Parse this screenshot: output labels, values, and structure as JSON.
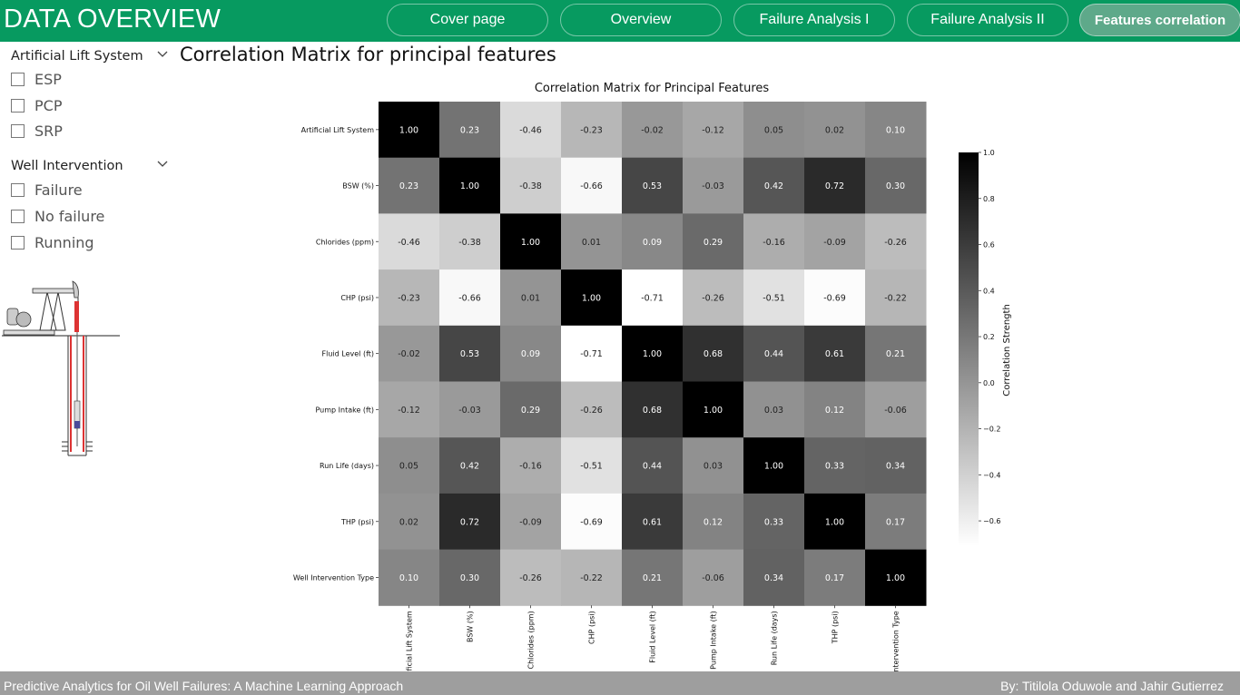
{
  "header": {
    "title": "DATA OVERVIEW",
    "tabs": [
      {
        "label": "Cover page",
        "active": false
      },
      {
        "label": "Overview",
        "active": false
      },
      {
        "label": "Failure Analysis I",
        "active": false
      },
      {
        "label": "Failure Analysis II",
        "active": false
      },
      {
        "label": "Features correlation",
        "active": true
      }
    ],
    "color": "#079a60"
  },
  "filters": {
    "artificial_lift": {
      "title": "Artificial Lift System",
      "options": [
        "ESP",
        "PCP",
        "SRP"
      ]
    },
    "well_intervention": {
      "title": "Well Intervention",
      "options": [
        "Failure",
        "No failure",
        "Running"
      ]
    }
  },
  "page_heading": "Correlation Matrix for principal features",
  "footer": {
    "left": "Predictive Analytics for Oil Well Failures: A Machine Learning Approach",
    "right": "By: Titilola Oduwole and Jahir Gutierrez"
  },
  "chart_data": {
    "type": "heatmap",
    "title": "Correlation Matrix for Principal Features",
    "row_labels": [
      "Artificial Lift System",
      "BSW (%)",
      "Chlorides (ppm)",
      "CHP (psi)",
      "Fluid Level (ft)",
      "Pump Intake (ft)",
      "Run Life (days)",
      "THP (psi)",
      "Well Intervention Type"
    ],
    "col_labels": [
      "ificial Lift System",
      "BSW (%)",
      "Chlorides (ppm)",
      "CHP (psi)",
      "Fluid Level (ft)",
      "Pump Intake (ft)",
      "Run Life (days)",
      "THP (psi)",
      "ntervention Type"
    ],
    "values": [
      [
        1.0,
        0.23,
        -0.46,
        -0.23,
        -0.02,
        -0.12,
        0.05,
        0.02,
        0.1
      ],
      [
        0.23,
        1.0,
        -0.38,
        -0.66,
        0.53,
        -0.03,
        0.42,
        0.72,
        0.3
      ],
      [
        -0.46,
        -0.38,
        1.0,
        0.01,
        0.09,
        0.29,
        -0.16,
        -0.09,
        -0.26
      ],
      [
        -0.23,
        -0.66,
        0.01,
        1.0,
        -0.71,
        -0.26,
        -0.51,
        -0.69,
        -0.22
      ],
      [
        -0.02,
        0.53,
        0.09,
        -0.71,
        1.0,
        0.68,
        0.44,
        0.61,
        0.21
      ],
      [
        -0.12,
        -0.03,
        0.29,
        -0.26,
        0.68,
        1.0,
        0.03,
        0.12,
        -0.06
      ],
      [
        0.05,
        0.42,
        -0.16,
        -0.51,
        0.44,
        0.03,
        1.0,
        0.33,
        0.34
      ],
      [
        0.02,
        0.72,
        -0.09,
        -0.69,
        0.61,
        0.12,
        0.33,
        1.0,
        0.17
      ],
      [
        0.1,
        0.3,
        -0.26,
        -0.22,
        0.21,
        -0.06,
        0.34,
        0.17,
        1.0
      ]
    ],
    "colorbar": {
      "label": "Correlation Strength",
      "range": [
        -0.71,
        1.0
      ],
      "ticks": [
        "1.0",
        "0.8",
        "0.6",
        "0.4",
        "0.2",
        "0.0",
        "−0.2",
        "−0.4",
        "−0.6"
      ]
    },
    "colormap": "greys"
  }
}
